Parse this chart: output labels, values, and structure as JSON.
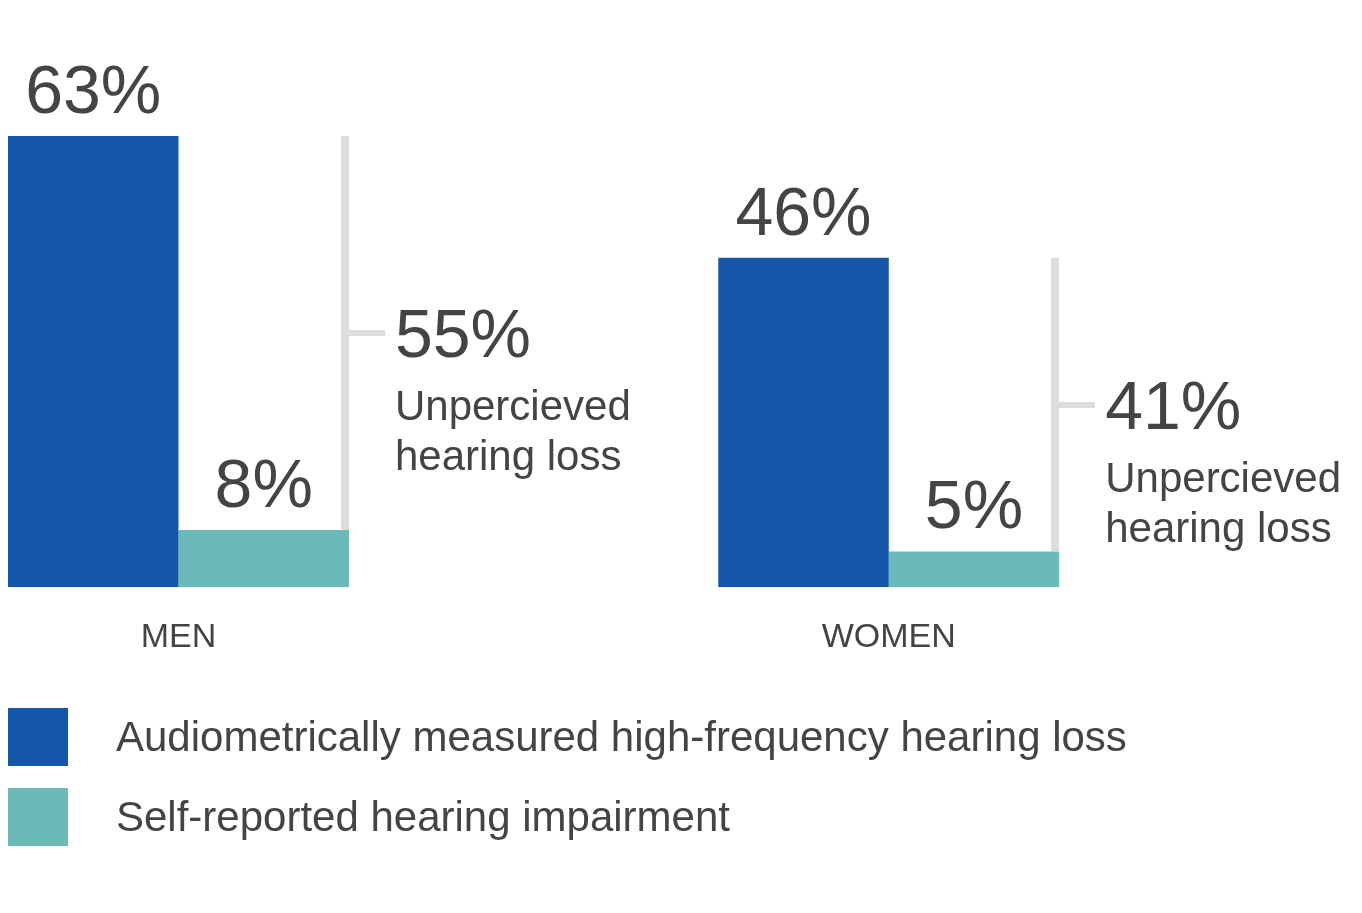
{
  "chart_data": {
    "type": "bar",
    "categories": [
      "MEN",
      "WOMEN"
    ],
    "series": [
      {
        "name": "Audiometrically measured high-frequency hearing loss",
        "color": "#1457a8",
        "values": [
          63,
          46
        ],
        "value_labels": [
          "63%",
          "46%"
        ]
      },
      {
        "name": "Self-reported hearing impairment",
        "color": "#6cbab8",
        "values": [
          8,
          5
        ],
        "value_labels": [
          "8%",
          "5%"
        ]
      }
    ],
    "grid": false,
    "legend": "bottom",
    "annotations": [
      "55%",
      "Unpercieved hearing loss",
      "41%",
      "Unpercieved hearing loss"
    ]
  }
}
